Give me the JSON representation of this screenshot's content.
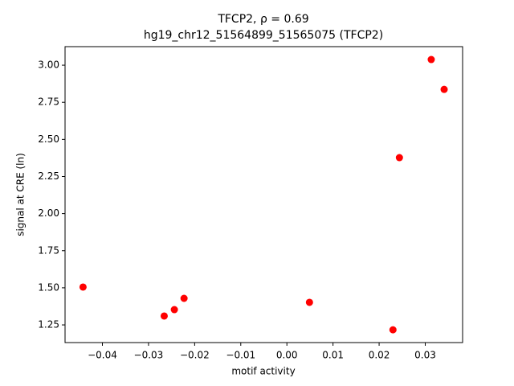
{
  "chart_data": {
    "type": "scatter",
    "title": "TFCP2, ρ = 0.69",
    "subtitle": "hg19_chr12_51564899_51565075 (TFCP2)",
    "x_label": "motif activity",
    "y_label": "signal at CRE (ln)",
    "color": "#ff0000",
    "x": [
      -0.0442,
      -0.0266,
      -0.0244,
      -0.0223,
      0.0049,
      0.023,
      0.0244,
      0.0313,
      0.0341
    ],
    "values": [
      1.505,
      1.31,
      1.353,
      1.429,
      1.402,
      1.217,
      2.377,
      3.038,
      2.837
    ],
    "xlim": [
      -0.0481,
      0.0381
    ],
    "ylim": [
      1.131,
      3.125
    ],
    "xticks": [
      {
        "value": -0.04,
        "label": "−0.04"
      },
      {
        "value": -0.03,
        "label": "−0.03"
      },
      {
        "value": -0.02,
        "label": "−0.02"
      },
      {
        "value": -0.01,
        "label": "−0.01"
      },
      {
        "value": 0,
        "label": "0.00"
      },
      0.01,
      0.02,
      0.03
    ],
    "yticks": [
      1.25,
      {
        "value": 1.5,
        "label": "1.50"
      },
      1.75,
      {
        "value": 2,
        "label": "2.00"
      },
      2.25,
      {
        "value": 2.5,
        "label": "2.50"
      },
      2.75,
      {
        "value": 3,
        "label": "3.00"
      }
    ]
  }
}
